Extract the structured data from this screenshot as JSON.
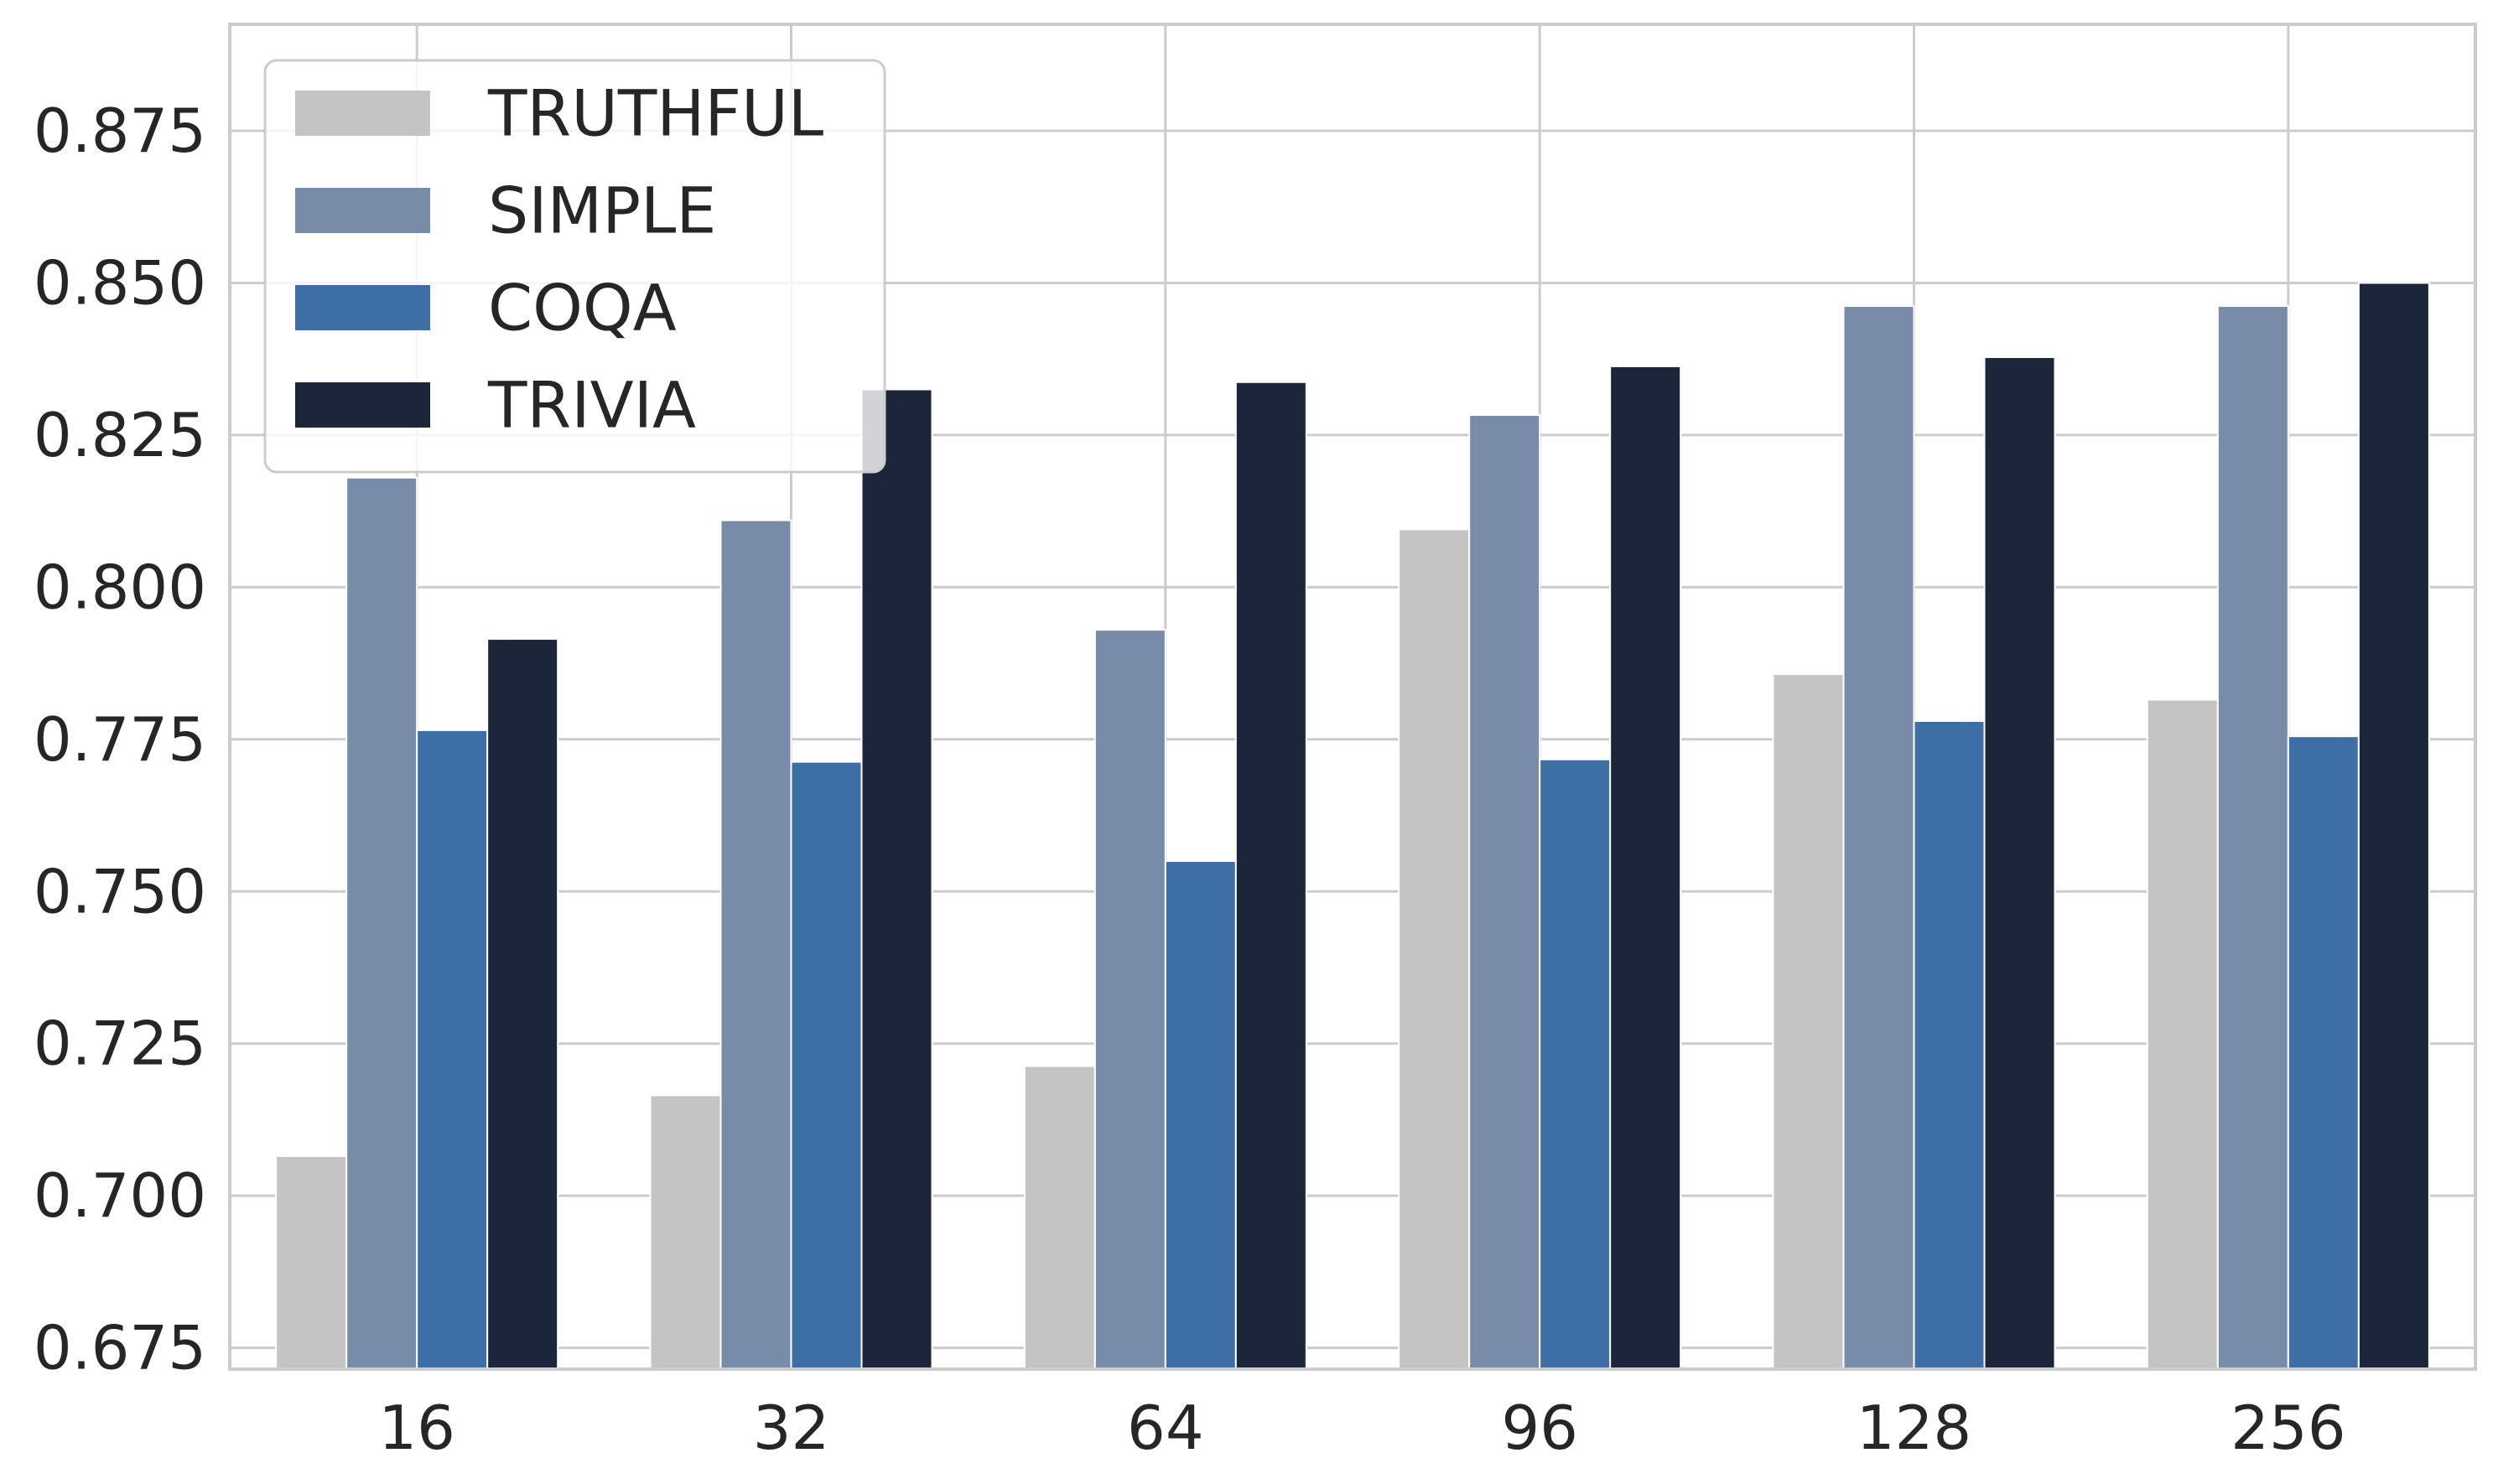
{
  "chart_data": {
    "type": "bar",
    "categories": [
      "16",
      "32",
      "64",
      "96",
      "128",
      "256"
    ],
    "series": [
      {
        "name": "TRUTHFUL",
        "color": "#c4c4c4",
        "values": [
          0.7065,
          0.7165,
          0.7213,
          0.8095,
          0.7857,
          0.7815
        ]
      },
      {
        "name": "SIMPLE",
        "color": "#788ca9",
        "values": [
          0.818,
          0.811,
          0.793,
          0.8283,
          0.8462,
          0.8462
        ]
      },
      {
        "name": "COQA",
        "color": "#3d6fa6",
        "values": [
          0.7765,
          0.7713,
          0.755,
          0.7717,
          0.778,
          0.7755
        ]
      },
      {
        "name": "TRIVIA",
        "color": "#1c263a",
        "values": [
          0.7915,
          0.8325,
          0.8337,
          0.8363,
          0.8378,
          0.85
        ]
      }
    ],
    "yticks": [
      "0.675",
      "0.700",
      "0.725",
      "0.750",
      "0.775",
      "0.800",
      "0.825",
      "0.850",
      "0.875"
    ],
    "ylim": [
      0.6715,
      0.8925
    ],
    "title": "",
    "xlabel": "",
    "ylabel": "",
    "grid": true,
    "legend_position": "top-left"
  }
}
